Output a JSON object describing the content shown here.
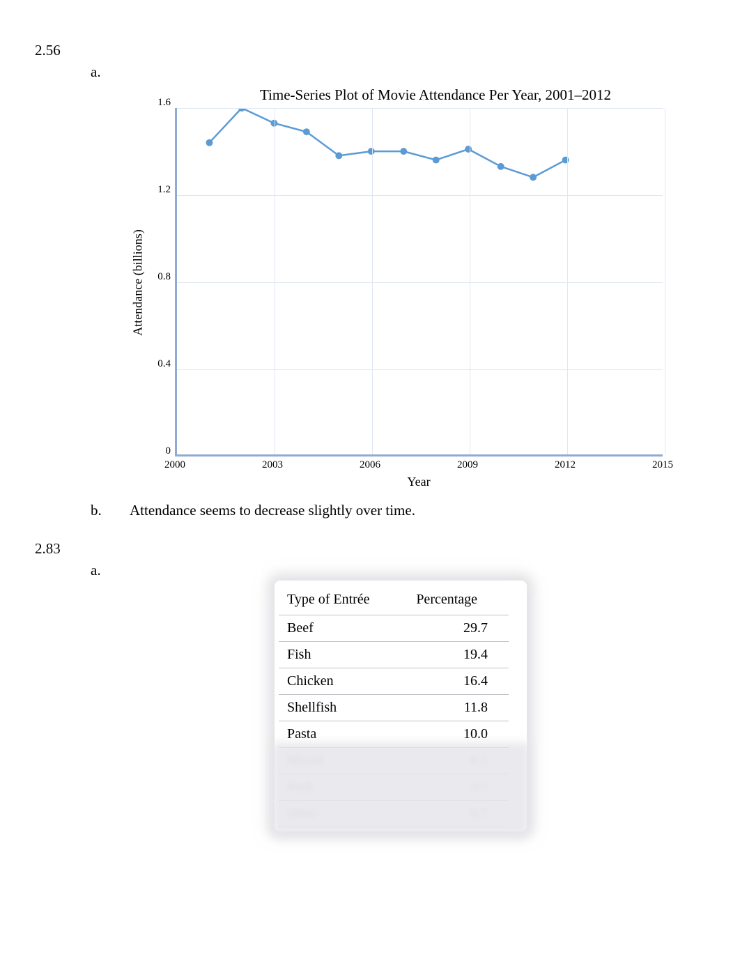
{
  "problem1": {
    "number": "2.56",
    "partA": "a.",
    "partB_letter": "b.",
    "partB_text": "Attendance seems to decrease slightly over time."
  },
  "chart": {
    "type": "line",
    "title": "Time-Series Plot of Movie Attendance Per Year, 2001–2012",
    "x_axis_label": "Year",
    "y_axis_label": "Attendance (billions)",
    "xlim": [
      2000,
      2015
    ],
    "ylim": [
      0,
      1.6
    ],
    "x_ticks": [
      2000,
      2003,
      2006,
      2009,
      2012,
      2015
    ],
    "y_ticks": [
      0,
      0.4,
      0.8,
      1.2,
      1.6
    ],
    "x_vals": [
      2001,
      2002,
      2003,
      2004,
      2005,
      2006,
      2007,
      2008,
      2009,
      2010,
      2011,
      2012
    ],
    "y_vals": [
      1.44,
      1.6,
      1.53,
      1.49,
      1.38,
      1.4,
      1.4,
      1.36,
      1.41,
      1.33,
      1.28,
      1.36
    ],
    "line_color": "#5b9bd5",
    "marker_color": "#5b9bd5",
    "marker_size": 5,
    "line_width": 2.5,
    "axis_color": "#8faad3",
    "grid_color": "#dfe7f1",
    "background_color": "#ffffff",
    "title_fontsize": 21,
    "label_fontsize": 18,
    "tick_fontsize": 15
  },
  "problem2": {
    "number": "2.83",
    "partA": "a."
  },
  "table": {
    "columns": [
      "Type of Entrée",
      "Percentage"
    ],
    "rows": [
      [
        "Beef",
        "29.7"
      ],
      [
        "Fish",
        "19.4"
      ],
      [
        "Chicken",
        "16.4"
      ],
      [
        "Shellfish",
        "11.8"
      ],
      [
        "Pasta",
        "10.0"
      ]
    ],
    "blurred_rows": [
      [
        "Mixed",
        "8.5"
      ],
      [
        "Pork",
        "3.5"
      ],
      [
        "Other",
        "0.7"
      ]
    ],
    "border_color": "#c2c2c8",
    "header_fontsize": 20,
    "cell_fontsize": 20
  }
}
